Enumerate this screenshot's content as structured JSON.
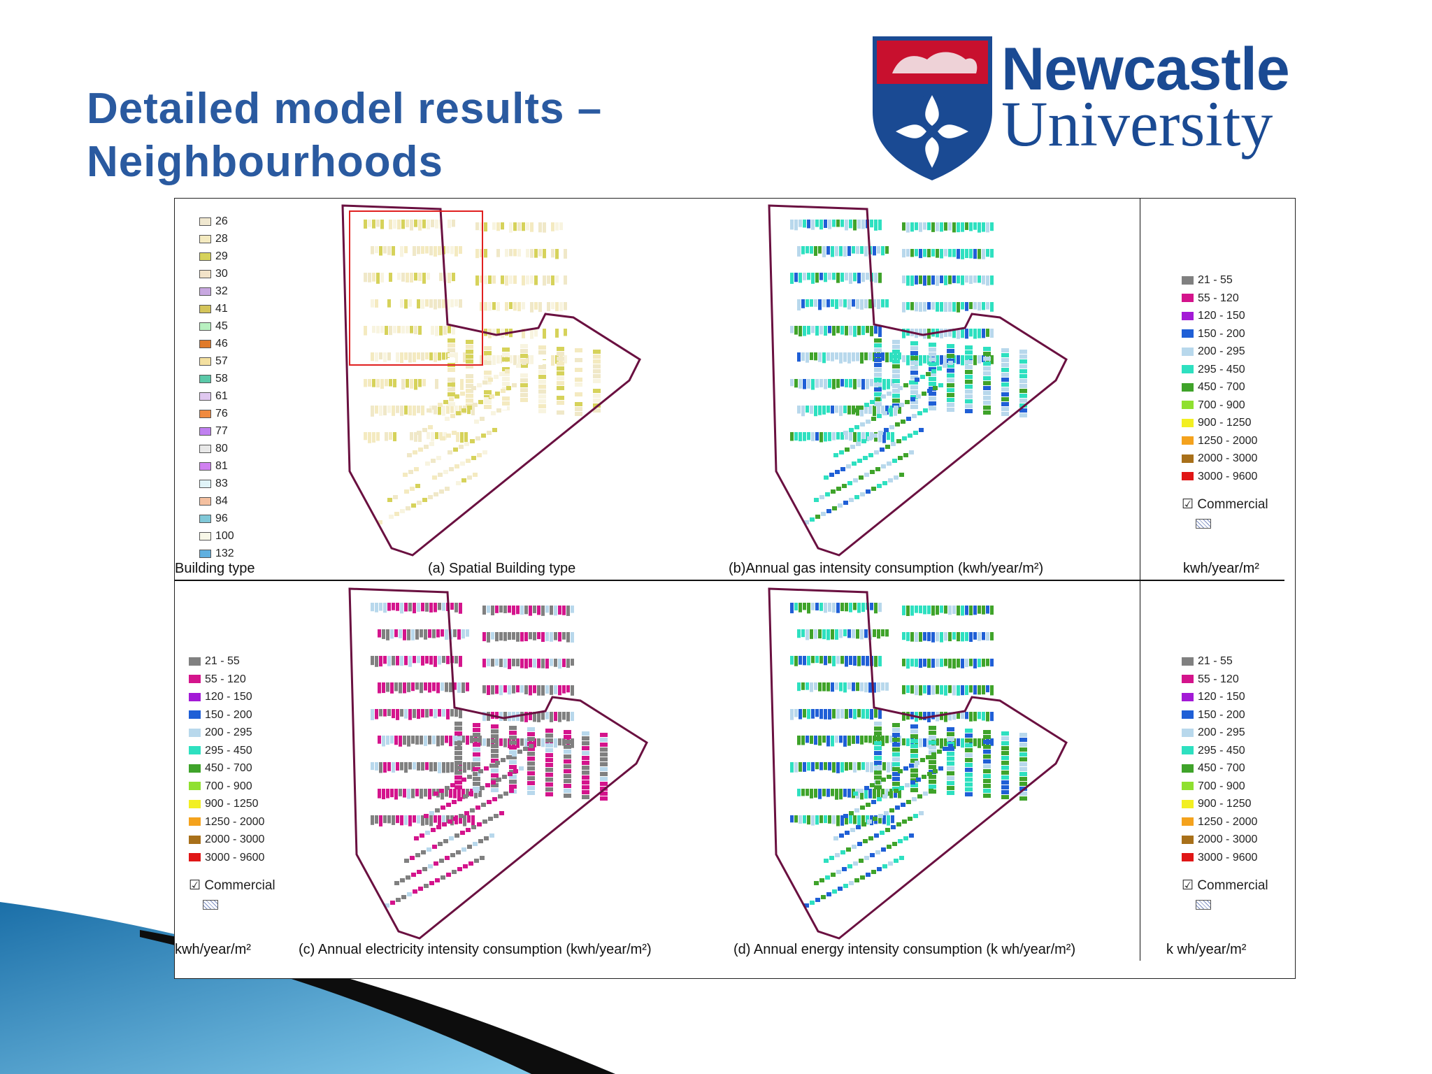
{
  "slide": {
    "title_line1": "Detailed model results –",
    "title_line2": "Neighbourhoods"
  },
  "logo": {
    "line1": "Newcastle",
    "line2": "University",
    "colors": {
      "navy": "#1a4a93",
      "red": "#c8102e"
    }
  },
  "building_type_legend": {
    "title": "Building type",
    "items": [
      "26",
      "28",
      "29",
      "30",
      "32",
      "41",
      "45",
      "46",
      "57",
      "58",
      "61",
      "76",
      "77",
      "80",
      "81",
      "83",
      "84",
      "96",
      "100",
      "132"
    ]
  },
  "intensity_legend": {
    "items": [
      {
        "label": "21 - 55",
        "color": "#808080"
      },
      {
        "label": "55 - 120",
        "color": "#d4148c"
      },
      {
        "label": "120 - 150",
        "color": "#a31ad6"
      },
      {
        "label": "150 - 200",
        "color": "#1f5fd6"
      },
      {
        "label": "200 - 295",
        "color": "#b8d8ec"
      },
      {
        "label": "295 - 450",
        "color": "#2ee0c0"
      },
      {
        "label": "450 - 700",
        "color": "#3fa32a"
      },
      {
        "label": "700 - 900",
        "color": "#8fe030"
      },
      {
        "label": "900 - 1250",
        "color": "#f2ef22"
      },
      {
        "label": "1250 - 2000",
        "color": "#f4a21d"
      },
      {
        "label": "2000 - 3000",
        "color": "#a8701a"
      },
      {
        "label": "3000 - 9600",
        "color": "#e01616"
      }
    ],
    "commercial_label": "Commercial",
    "unit": "kwh/year/m²",
    "unit_spaced": "k wh/year/m²"
  },
  "captions": {
    "a": "(a)   Spatial Building type",
    "b": "(b)Annual gas intensity consumption (kwh/year/m²)",
    "c": "(c) Annual electricity intensity consumption (kwh/year/m²)",
    "d": "(d) Annual energy intensity consumption (k wh/year/m²)"
  }
}
